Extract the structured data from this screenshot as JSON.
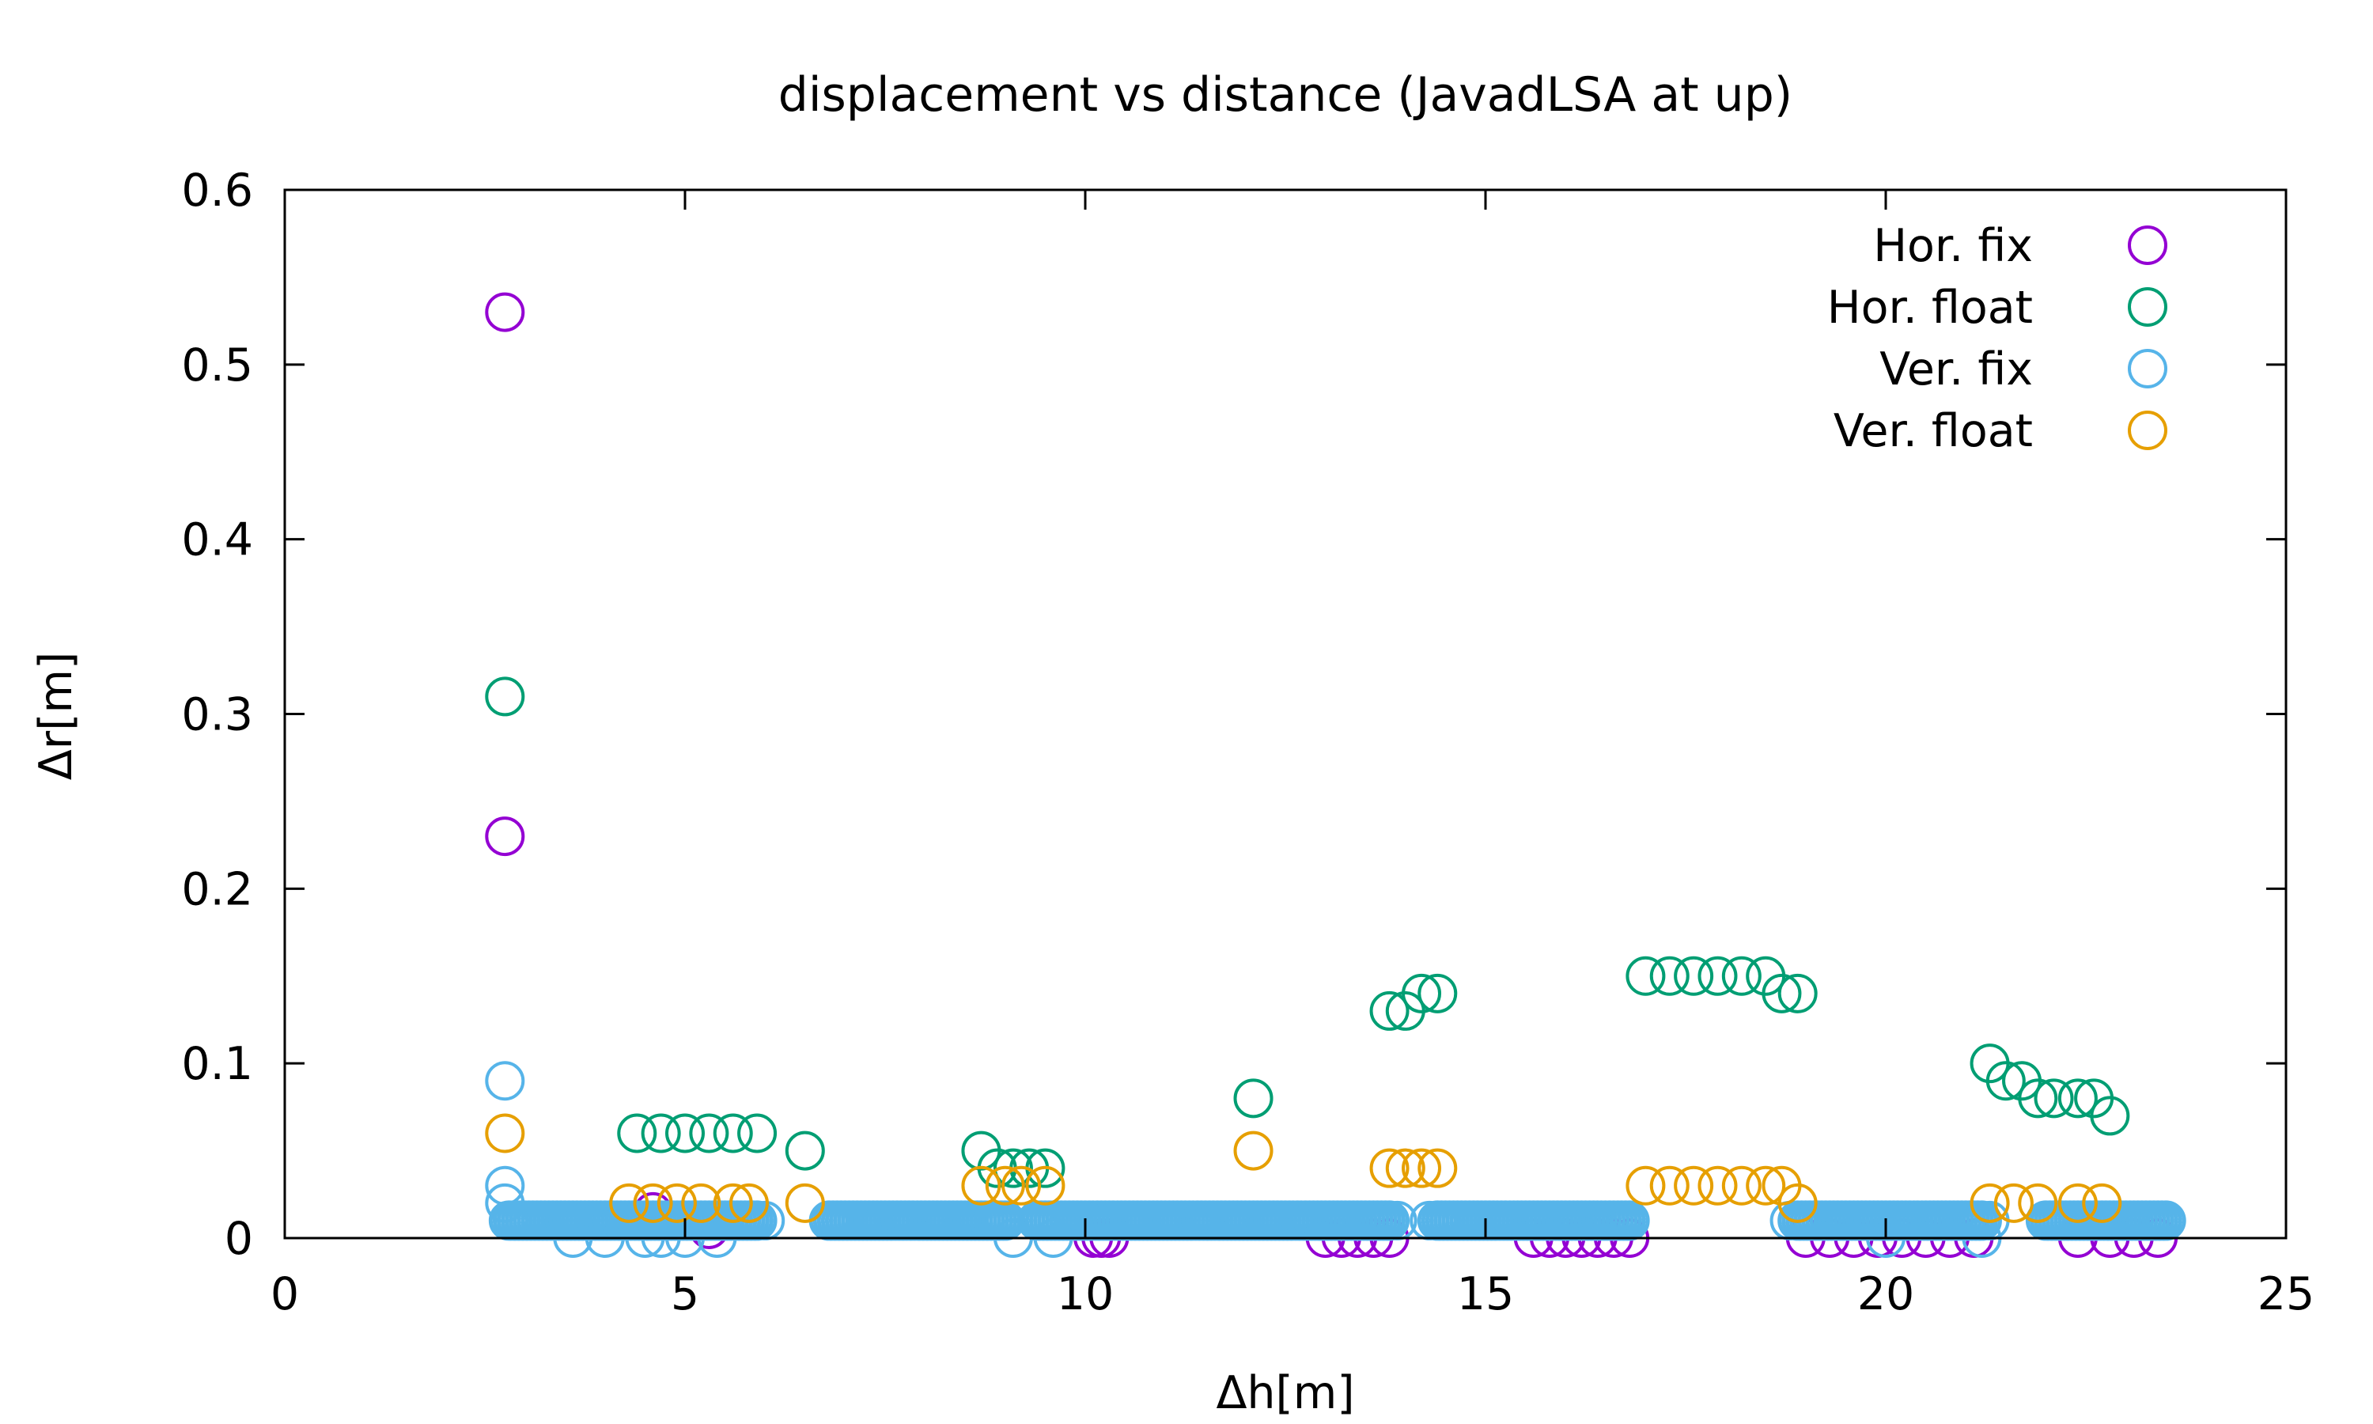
{
  "chart_data": {
    "type": "scatter",
    "title": "displacement vs distance (JavadLSA at up)",
    "xlabel": "Δh[m]",
    "ylabel": "Δr[m]",
    "xlim": [
      0,
      25
    ],
    "ylim": [
      0,
      0.6
    ],
    "x_ticks": [
      "0",
      "5",
      "10",
      "15",
      "20",
      "25"
    ],
    "y_ticks": [
      "0",
      "0.1",
      "0.2",
      "0.3",
      "0.4",
      "0.5",
      "0.6"
    ],
    "grid": false,
    "legend_position": "top-right",
    "series": [
      {
        "name": "Hor. fix",
        "color": "#9400d3",
        "marker": "open-circle",
        "points": [
          [
            2.75,
            0.53
          ],
          [
            2.75,
            0.23
          ],
          [
            3.9,
            0.01
          ],
          [
            4.6,
            0.015
          ],
          [
            5.3,
            0.005
          ],
          [
            5.7,
            0.01
          ],
          [
            10.1,
            0.0
          ],
          [
            10.2,
            0.0
          ],
          [
            10.3,
            0.0
          ],
          [
            13.0,
            0.0
          ],
          [
            13.2,
            0.0
          ],
          [
            13.4,
            0.0
          ],
          [
            13.6,
            0.0
          ],
          [
            13.8,
            0.0
          ],
          [
            15.6,
            0.0
          ],
          [
            15.8,
            0.0
          ],
          [
            16.0,
            0.0
          ],
          [
            16.2,
            0.0
          ],
          [
            16.4,
            0.0
          ],
          [
            16.6,
            0.0
          ],
          [
            16.8,
            0.0
          ],
          [
            19.0,
            0.0
          ],
          [
            19.3,
            0.0
          ],
          [
            19.6,
            0.0
          ],
          [
            19.9,
            0.0
          ],
          [
            20.2,
            0.0
          ],
          [
            20.5,
            0.0
          ],
          [
            20.8,
            0.0
          ],
          [
            21.1,
            0.0
          ],
          [
            22.4,
            0.0
          ],
          [
            22.8,
            0.0
          ],
          [
            23.1,
            0.0
          ],
          [
            23.4,
            0.0
          ]
        ]
      },
      {
        "name": "Hor. float",
        "color": "#009e73",
        "marker": "open-circle",
        "points": [
          [
            2.75,
            0.31
          ],
          [
            4.4,
            0.06
          ],
          [
            4.7,
            0.06
          ],
          [
            5.0,
            0.06
          ],
          [
            5.3,
            0.06
          ],
          [
            5.6,
            0.06
          ],
          [
            5.9,
            0.06
          ],
          [
            6.5,
            0.05
          ],
          [
            8.7,
            0.05
          ],
          [
            8.9,
            0.04
          ],
          [
            9.1,
            0.04
          ],
          [
            9.3,
            0.04
          ],
          [
            9.5,
            0.04
          ],
          [
            12.1,
            0.08
          ],
          [
            13.8,
            0.13
          ],
          [
            14.0,
            0.13
          ],
          [
            14.2,
            0.14
          ],
          [
            14.4,
            0.14
          ],
          [
            17.0,
            0.15
          ],
          [
            17.3,
            0.15
          ],
          [
            17.6,
            0.15
          ],
          [
            17.9,
            0.15
          ],
          [
            18.2,
            0.15
          ],
          [
            18.5,
            0.15
          ],
          [
            18.7,
            0.14
          ],
          [
            18.9,
            0.14
          ],
          [
            21.3,
            0.1
          ],
          [
            21.5,
            0.09
          ],
          [
            21.7,
            0.09
          ],
          [
            21.9,
            0.08
          ],
          [
            22.1,
            0.08
          ],
          [
            22.4,
            0.08
          ],
          [
            22.6,
            0.08
          ],
          [
            22.8,
            0.07
          ]
        ]
      },
      {
        "name": "Ver. fix",
        "color": "#56b4e9",
        "marker": "open-circle",
        "points": [
          [
            2.75,
            0.09
          ],
          [
            2.75,
            0.03
          ],
          [
            2.75,
            0.02
          ],
          [
            3.6,
            0.0
          ],
          [
            4.0,
            0.0
          ],
          [
            4.5,
            0.0
          ],
          [
            4.7,
            0.0
          ],
          [
            5.0,
            0.0
          ],
          [
            5.4,
            0.0
          ],
          [
            6.0,
            0.01
          ],
          [
            9.1,
            0.0
          ],
          [
            9.6,
            0.0
          ],
          [
            20.0,
            0.0
          ],
          [
            21.2,
            0.0
          ],
          [
            2.8,
            0.01
          ],
          [
            3.5,
            0.01
          ],
          [
            4.2,
            0.01
          ],
          [
            4.9,
            0.01
          ],
          [
            5.6,
            0.01
          ],
          [
            6.8,
            0.01
          ],
          [
            8.8,
            0.01
          ],
          [
            9.4,
            0.01
          ],
          [
            13.9,
            0.01
          ],
          [
            14.3,
            0.01
          ],
          [
            16.8,
            0.01
          ],
          [
            18.8,
            0.01
          ],
          [
            21.3,
            0.01
          ],
          [
            22.0,
            0.01
          ],
          [
            23.5,
            0.01
          ]
        ],
        "runs": [
          [
            2.8,
            5.9,
            0.01
          ],
          [
            6.8,
            9.0,
            0.01
          ],
          [
            9.4,
            13.8,
            0.01
          ],
          [
            14.4,
            16.8,
            0.01
          ],
          [
            18.9,
            21.2,
            0.01
          ],
          [
            22.0,
            23.5,
            0.01
          ]
        ]
      },
      {
        "name": "Ver. float",
        "color": "#e69f00",
        "marker": "open-circle",
        "points": [
          [
            2.75,
            0.06
          ],
          [
            4.3,
            0.02
          ],
          [
            4.6,
            0.02
          ],
          [
            4.9,
            0.02
          ],
          [
            5.2,
            0.02
          ],
          [
            5.6,
            0.02
          ],
          [
            5.8,
            0.02
          ],
          [
            6.5,
            0.02
          ],
          [
            8.7,
            0.03
          ],
          [
            9.0,
            0.03
          ],
          [
            9.2,
            0.03
          ],
          [
            9.5,
            0.03
          ],
          [
            12.1,
            0.05
          ],
          [
            13.8,
            0.04
          ],
          [
            14.0,
            0.04
          ],
          [
            14.2,
            0.04
          ],
          [
            14.4,
            0.04
          ],
          [
            17.0,
            0.03
          ],
          [
            17.3,
            0.03
          ],
          [
            17.6,
            0.03
          ],
          [
            17.9,
            0.03
          ],
          [
            18.2,
            0.03
          ],
          [
            18.5,
            0.03
          ],
          [
            18.7,
            0.03
          ],
          [
            18.9,
            0.02
          ],
          [
            21.3,
            0.02
          ],
          [
            21.6,
            0.02
          ],
          [
            21.9,
            0.02
          ],
          [
            22.4,
            0.02
          ],
          [
            22.7,
            0.02
          ]
        ]
      }
    ]
  }
}
